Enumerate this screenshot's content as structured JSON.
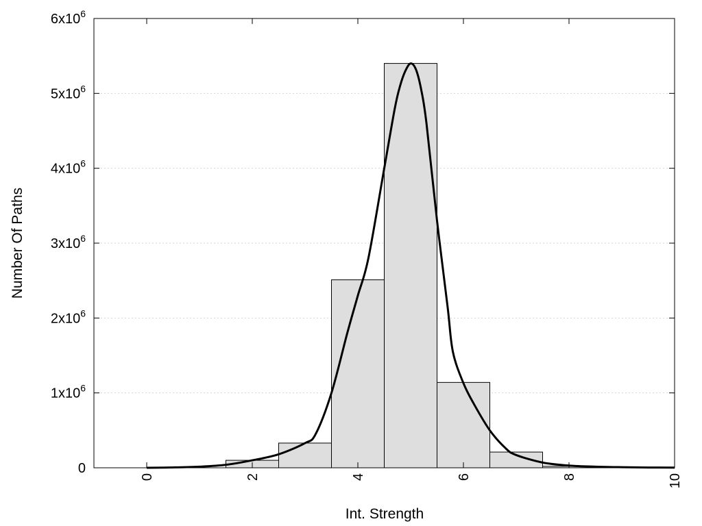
{
  "chart_data": {
    "type": "bar",
    "xlabel": "Int. Strength",
    "ylabel": "Number Of Paths",
    "xlim": [
      -1,
      10
    ],
    "ylim": [
      0,
      6000000
    ],
    "grid": "horizontal-dotted",
    "legend": "none",
    "x_ticks": [
      {
        "value": 0,
        "label": "0"
      },
      {
        "value": 2,
        "label": "2"
      },
      {
        "value": 4,
        "label": "4"
      },
      {
        "value": 6,
        "label": "6"
      },
      {
        "value": 8,
        "label": "8"
      },
      {
        "value": 10,
        "label": "10"
      }
    ],
    "y_ticks": [
      {
        "value": 0,
        "base": "0",
        "exp": ""
      },
      {
        "value": 1000000,
        "base": "1x10",
        "exp": "6"
      },
      {
        "value": 2000000,
        "base": "2x10",
        "exp": "6"
      },
      {
        "value": 3000000,
        "base": "3x10",
        "exp": "6"
      },
      {
        "value": 4000000,
        "base": "4x10",
        "exp": "6"
      },
      {
        "value": 5000000,
        "base": "5x10",
        "exp": "6"
      },
      {
        "value": 6000000,
        "base": "6x10",
        "exp": "6"
      }
    ],
    "bars": [
      {
        "x": 0,
        "value": 0
      },
      {
        "x": 1,
        "value": 0
      },
      {
        "x": 2,
        "value": 100000
      },
      {
        "x": 3,
        "value": 330000
      },
      {
        "x": 4,
        "value": 2510000
      },
      {
        "x": 5,
        "value": 5400000
      },
      {
        "x": 6,
        "value": 1140000
      },
      {
        "x": 7,
        "value": 210000
      },
      {
        "x": 8,
        "value": 20000
      },
      {
        "x": 9,
        "value": 0
      },
      {
        "x": 10,
        "value": 0
      }
    ],
    "bar_width": 1,
    "series": [
      {
        "type": "line",
        "x": [
          0,
          0.5,
          1,
          1.5,
          2,
          2.5,
          3,
          3.2,
          3.5,
          3.8,
          4,
          4.2,
          4.5,
          4.7,
          4.8,
          4.9,
          5,
          5.1,
          5.2,
          5.3,
          5.5,
          5.7,
          5.8,
          6,
          6.2,
          6.5,
          6.8,
          7,
          7.5,
          8,
          8.5,
          9,
          9.5,
          10
        ],
        "y": [
          0,
          5000,
          15000,
          40000,
          100000,
          180000,
          330000,
          450000,
          1000000,
          1800000,
          2300000,
          2800000,
          4000000,
          4800000,
          5100000,
          5300000,
          5400000,
          5320000,
          5050000,
          4600000,
          3300000,
          2150000,
          1550000,
          1130000,
          850000,
          500000,
          260000,
          170000,
          70000,
          30000,
          15000,
          8000,
          4000,
          2000
        ]
      }
    ],
    "colors": {
      "bar_fill": "#dedede",
      "bar_stroke": "#000000",
      "line": "#000000",
      "grid": "#d3d3d3"
    }
  }
}
